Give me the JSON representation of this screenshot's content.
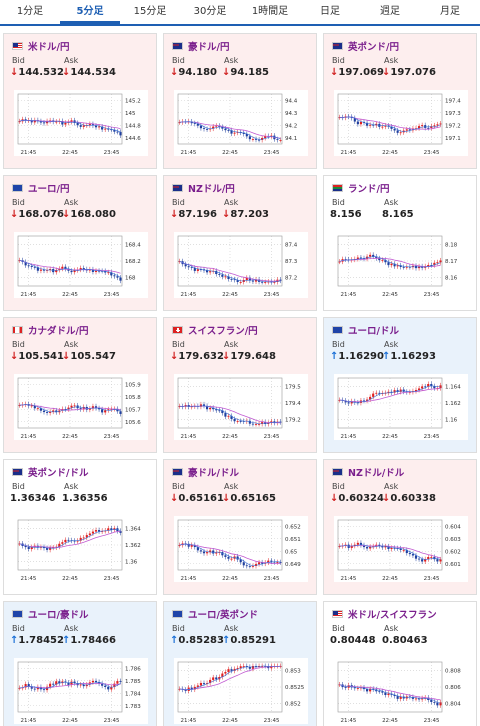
{
  "tabs": [
    "1分足",
    "5分足",
    "15分足",
    "30分足",
    "1時間足",
    "日足",
    "週足",
    "月足"
  ],
  "active_tab": 1,
  "labels": {
    "bid": "Bid",
    "ask": "Ask"
  },
  "x_ticks": [
    "21:45",
    "22:45",
    "23:45"
  ],
  "colors": {
    "down_bg": "#fdeeee",
    "up_bg": "#e9f2fb",
    "flat_bg": "#ffffff",
    "down_arrow": "#d01f1f",
    "up_arrow": "#1a6fd6",
    "candle_up": "#e02020",
    "candle_down": "#1f3f9e",
    "ma": "#c15ad1",
    "line": "#3a6fd6"
  },
  "cards": [
    {
      "pair": "米ドル/円",
      "flag": "us",
      "trend": "down",
      "bid": "144.532",
      "ask": "144.534",
      "yticks": [
        "145.2",
        "145",
        "144.8",
        "144.6"
      ]
    },
    {
      "pair": "豪ドル/円",
      "flag": "au",
      "trend": "down",
      "bid": "94.180",
      "ask": "94.185",
      "yticks": [
        "94.4",
        "94.3",
        "94.2",
        "94.1"
      ]
    },
    {
      "pair": "英ポンド/円",
      "flag": "uk",
      "trend": "down",
      "bid": "197.069",
      "ask": "197.076",
      "yticks": [
        "197.4",
        "197.3",
        "197.2",
        "197.1"
      ]
    },
    {
      "pair": "ユーロ/円",
      "flag": "eu",
      "trend": "down",
      "bid": "168.076",
      "ask": "168.080",
      "yticks": [
        "168.4",
        "168.2",
        "168"
      ]
    },
    {
      "pair": "NZドル/円",
      "flag": "nz",
      "trend": "down",
      "bid": "87.196",
      "ask": "87.203",
      "yticks": [
        "87.4",
        "87.3",
        "87.2"
      ]
    },
    {
      "pair": "ランド/円",
      "flag": "za",
      "trend": "flat",
      "bid": "8.156",
      "ask": "8.165",
      "yticks": [
        "8.18",
        "8.17",
        "8.16"
      ]
    },
    {
      "pair": "カナダドル/円",
      "flag": "ca",
      "trend": "down",
      "bid": "105.541",
      "ask": "105.547",
      "yticks": [
        "105.9",
        "105.8",
        "105.7",
        "105.6"
      ]
    },
    {
      "pair": "スイスフラン/円",
      "flag": "ch",
      "trend": "down",
      "bid": "179.632",
      "ask": "179.648",
      "yticks": [
        "179.5",
        "179.4",
        "179.2"
      ]
    },
    {
      "pair": "ユーロ/ドル",
      "flag": "eu",
      "trend": "up",
      "bid": "1.16290",
      "ask": "1.16293",
      "yticks": [
        "1.164",
        "1.162",
        "1.16"
      ]
    },
    {
      "pair": "英ポンド/ドル",
      "flag": "uk",
      "trend": "flat",
      "bid": "1.36346",
      "ask": "1.36356",
      "yticks": [
        "1.364",
        "1.362",
        "1.36"
      ]
    },
    {
      "pair": "豪ドル/ドル",
      "flag": "au",
      "trend": "down",
      "bid": "0.65161",
      "ask": "0.65165",
      "yticks": [
        "0.652",
        "0.651",
        "0.65",
        "0.649"
      ]
    },
    {
      "pair": "NZドル/ドル",
      "flag": "nz",
      "trend": "down",
      "bid": "0.60324",
      "ask": "0.60338",
      "yticks": [
        "0.604",
        "0.603",
        "0.602",
        "0.601"
      ]
    },
    {
      "pair": "ユーロ/豪ドル",
      "flag": "eu",
      "trend": "up",
      "bid": "1.78452",
      "ask": "1.78466",
      "yticks": [
        "1.786",
        "1.785",
        "1.784",
        "1.783"
      ]
    },
    {
      "pair": "ユーロ/英ポンド",
      "flag": "eu",
      "trend": "up",
      "bid": "0.85283",
      "ask": "0.85291",
      "yticks": [
        "0.853",
        "0.8525",
        "0.852"
      ]
    },
    {
      "pair": "米ドル/スイスフラン",
      "flag": "us",
      "trend": "flat",
      "bid": "0.80448",
      "ask": "0.80463",
      "yticks": [
        "0.808",
        "0.806",
        "0.804"
      ]
    }
  ]
}
